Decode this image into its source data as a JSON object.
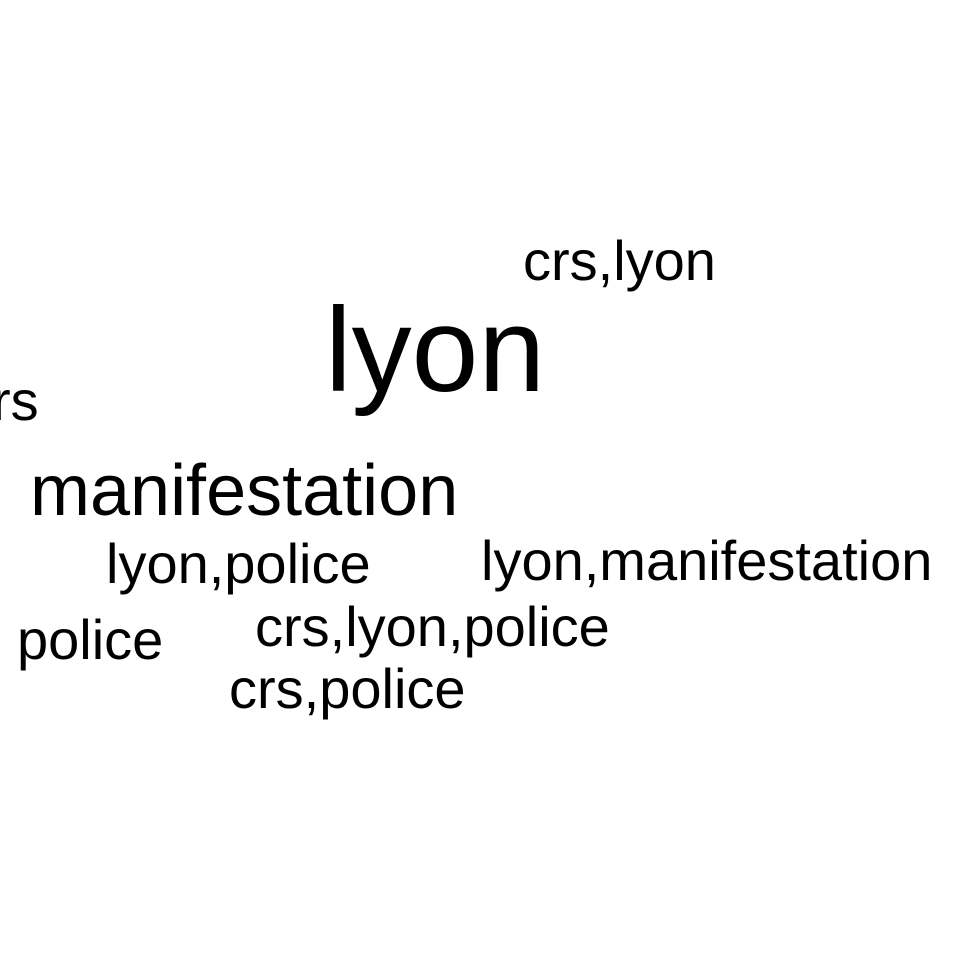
{
  "word_cloud": {
    "text_color": "#000000",
    "background_color": "#ffffff",
    "words": [
      {
        "text": "lyon",
        "rank": 1
      },
      {
        "text": "manifestation",
        "rank": 2
      },
      {
        "text": "crs,lyon",
        "rank": 3
      },
      {
        "text": "crs",
        "rank": 3
      },
      {
        "text": "lyon,police",
        "rank": 3
      },
      {
        "text": "lyon,manifestation",
        "rank": 3
      },
      {
        "text": "police",
        "rank": 3
      },
      {
        "text": "crs,lyon,police",
        "rank": 3
      },
      {
        "text": "crs,police",
        "rank": 3
      }
    ]
  }
}
